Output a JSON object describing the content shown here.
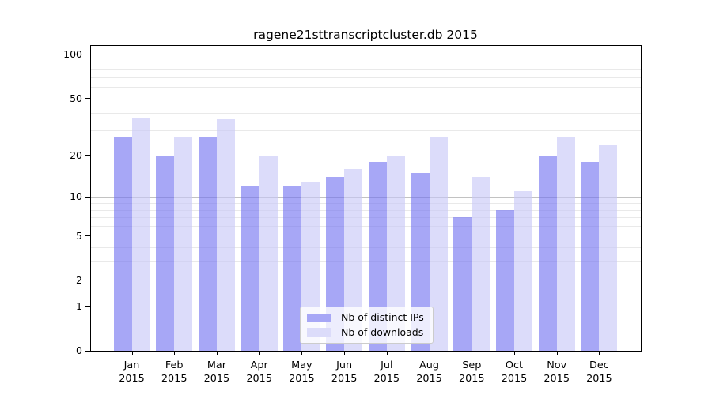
{
  "chart_data": {
    "type": "bar",
    "title": "ragene21sttranscriptcluster.db 2015",
    "year": "2015",
    "categories": [
      "Jan",
      "Feb",
      "Mar",
      "Apr",
      "May",
      "Jun",
      "Jul",
      "Aug",
      "Sep",
      "Oct",
      "Nov",
      "Dec"
    ],
    "series": [
      {
        "name": "Nb of distinct IPs",
        "color": "#a7a7f6",
        "fill": "rgba(113,113,240,0.62)",
        "values": [
          27,
          20,
          27,
          12,
          12,
          14,
          18,
          15,
          7,
          8,
          20,
          18
        ]
      },
      {
        "name": "Nb of downloads",
        "color": "#dcdcfa",
        "fill": "rgba(199,199,247,0.62)",
        "values": [
          37,
          27,
          36,
          20,
          13,
          16,
          20,
          27,
          14,
          11,
          27,
          24
        ]
      }
    ],
    "y_axis": {
      "scale": "log1p",
      "min": 0,
      "max": 115,
      "tick_labels": [
        0,
        1,
        2,
        5,
        10,
        20,
        50,
        100
      ],
      "major_gridlines": [
        1,
        10,
        100
      ],
      "minor_gridlines": [
        3,
        4,
        6,
        7,
        8,
        9,
        30,
        40,
        60,
        70,
        80,
        90
      ]
    },
    "x_axis": {
      "label_line2": "2015"
    },
    "legend_position": "lower center",
    "grid": true
  },
  "colors": {
    "background": "#ffffff",
    "axis": "#000000",
    "major_grid": "#c2c2c2",
    "minor_grid": "#e9e9e9",
    "bar_distinct_ips": "#a7a7f6",
    "bar_downloads": "#dcdcfa"
  }
}
